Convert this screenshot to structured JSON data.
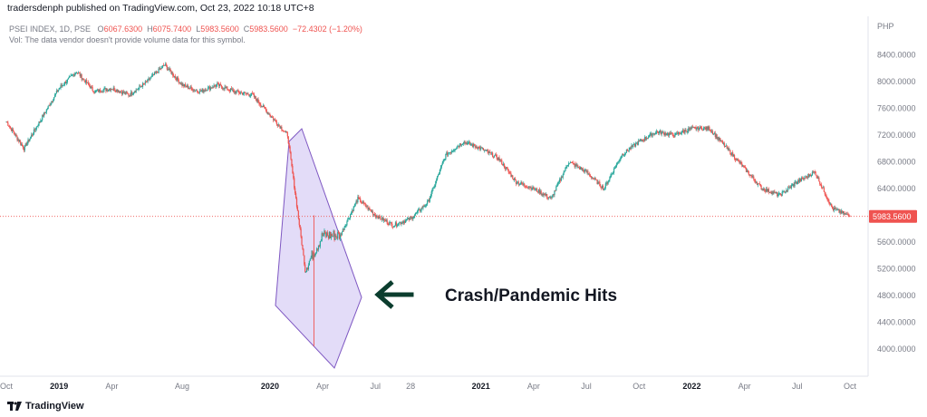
{
  "header": {
    "published": "tradersdenph published on TradingView.com, Oct 23, 2022 10:18 UTC+8"
  },
  "legend": {
    "symbol": "PSEI INDEX, 1D, PSE",
    "open_label": "O",
    "open": "6067.6300",
    "high_label": "H",
    "high": "6075.7400",
    "low_label": "L",
    "low": "5983.5600",
    "close_label": "C",
    "close": "5983.5600",
    "change": "−72.4302 (−1.20%)",
    "volume_note": "Vol: The data vendor doesn't provide volume data for this symbol."
  },
  "brand": {
    "name": "TradingView",
    "icon": "tradingview-logo-icon"
  },
  "colors": {
    "up": "#26a69a",
    "down": "#ef5350",
    "highlight": "#d9d0f5",
    "highlight_stroke": "#7e57c2",
    "arrow": "#0b3d2e"
  },
  "chart_data": {
    "type": "candlestick",
    "currency_label": "PHP",
    "last_price_label": "5983.5600",
    "last_price": 5983.56,
    "ylim": [
      3700,
      8700
    ],
    "y_ticks": [
      "8400.0000",
      "8000.0000",
      "7600.0000",
      "7200.0000",
      "6800.0000",
      "6400.0000",
      "6000.0000",
      "5600.0000",
      "5200.0000",
      "4800.0000",
      "4400.0000",
      "4000.0000"
    ],
    "x_ticks": [
      "Oct",
      "2019",
      "Apr",
      "Aug",
      "2020",
      "Apr",
      "Jul",
      "28",
      "2021",
      "Apr",
      "Jul",
      "Oct",
      "2022",
      "Apr",
      "Jul",
      "Oct"
    ],
    "x_tick_dates": [
      "2018-10",
      "2019-01",
      "2019-04",
      "2019-08",
      "2020-01",
      "2020-04",
      "2020-07",
      "2020-09",
      "2021-01",
      "2021-04",
      "2021-07",
      "2021-10",
      "2022-01",
      "2022-04",
      "2022-07",
      "2022-10"
    ],
    "series_path": [
      [
        "2018-10",
        7400
      ],
      [
        "2018-11",
        7000
      ],
      [
        "2018-12",
        7450
      ],
      [
        "2019-01",
        7900
      ],
      [
        "2019-02",
        8150
      ],
      [
        "2019-03",
        7850
      ],
      [
        "2019-04",
        7900
      ],
      [
        "2019-05",
        7800
      ],
      [
        "2019-06",
        8000
      ],
      [
        "2019-07",
        8250
      ],
      [
        "2019-08",
        7950
      ],
      [
        "2019-09",
        7850
      ],
      [
        "2019-10",
        7950
      ],
      [
        "2019-11",
        7850
      ],
      [
        "2019-12",
        7800
      ],
      [
        "2020-01",
        7500
      ],
      [
        "2020-02",
        7200
      ],
      [
        "2020-03",
        5200
      ],
      [
        "2020-04",
        5700
      ],
      [
        "2020-05",
        5700
      ],
      [
        "2020-06",
        6250
      ],
      [
        "2020-07",
        6000
      ],
      [
        "2020-08",
        5850
      ],
      [
        "2020-09",
        5950
      ],
      [
        "2020-10",
        6200
      ],
      [
        "2020-11",
        6900
      ],
      [
        "2020-12",
        7100
      ],
      [
        "2021-01",
        7000
      ],
      [
        "2021-02",
        6850
      ],
      [
        "2021-03",
        6500
      ],
      [
        "2021-04",
        6400
      ],
      [
        "2021-05",
        6250
      ],
      [
        "2021-06",
        6800
      ],
      [
        "2021-07",
        6650
      ],
      [
        "2021-08",
        6400
      ],
      [
        "2021-09",
        6900
      ],
      [
        "2021-10",
        7100
      ],
      [
        "2021-11",
        7250
      ],
      [
        "2021-12",
        7200
      ],
      [
        "2022-01",
        7300
      ],
      [
        "2022-02",
        7300
      ],
      [
        "2022-03",
        7000
      ],
      [
        "2022-04",
        6700
      ],
      [
        "2022-05",
        6400
      ],
      [
        "2022-06",
        6300
      ],
      [
        "2022-07",
        6500
      ],
      [
        "2022-08",
        6650
      ],
      [
        "2022-09",
        6100
      ],
      [
        "2022-10",
        5985
      ]
    ],
    "annotations": [
      {
        "type": "text",
        "text": "Crash/Pandemic Hits"
      },
      {
        "type": "arrow",
        "direction": "left",
        "color": "#0b3d2e"
      },
      {
        "type": "polygon",
        "shape": "highlight",
        "fill": "#d9d0f5"
      }
    ]
  }
}
